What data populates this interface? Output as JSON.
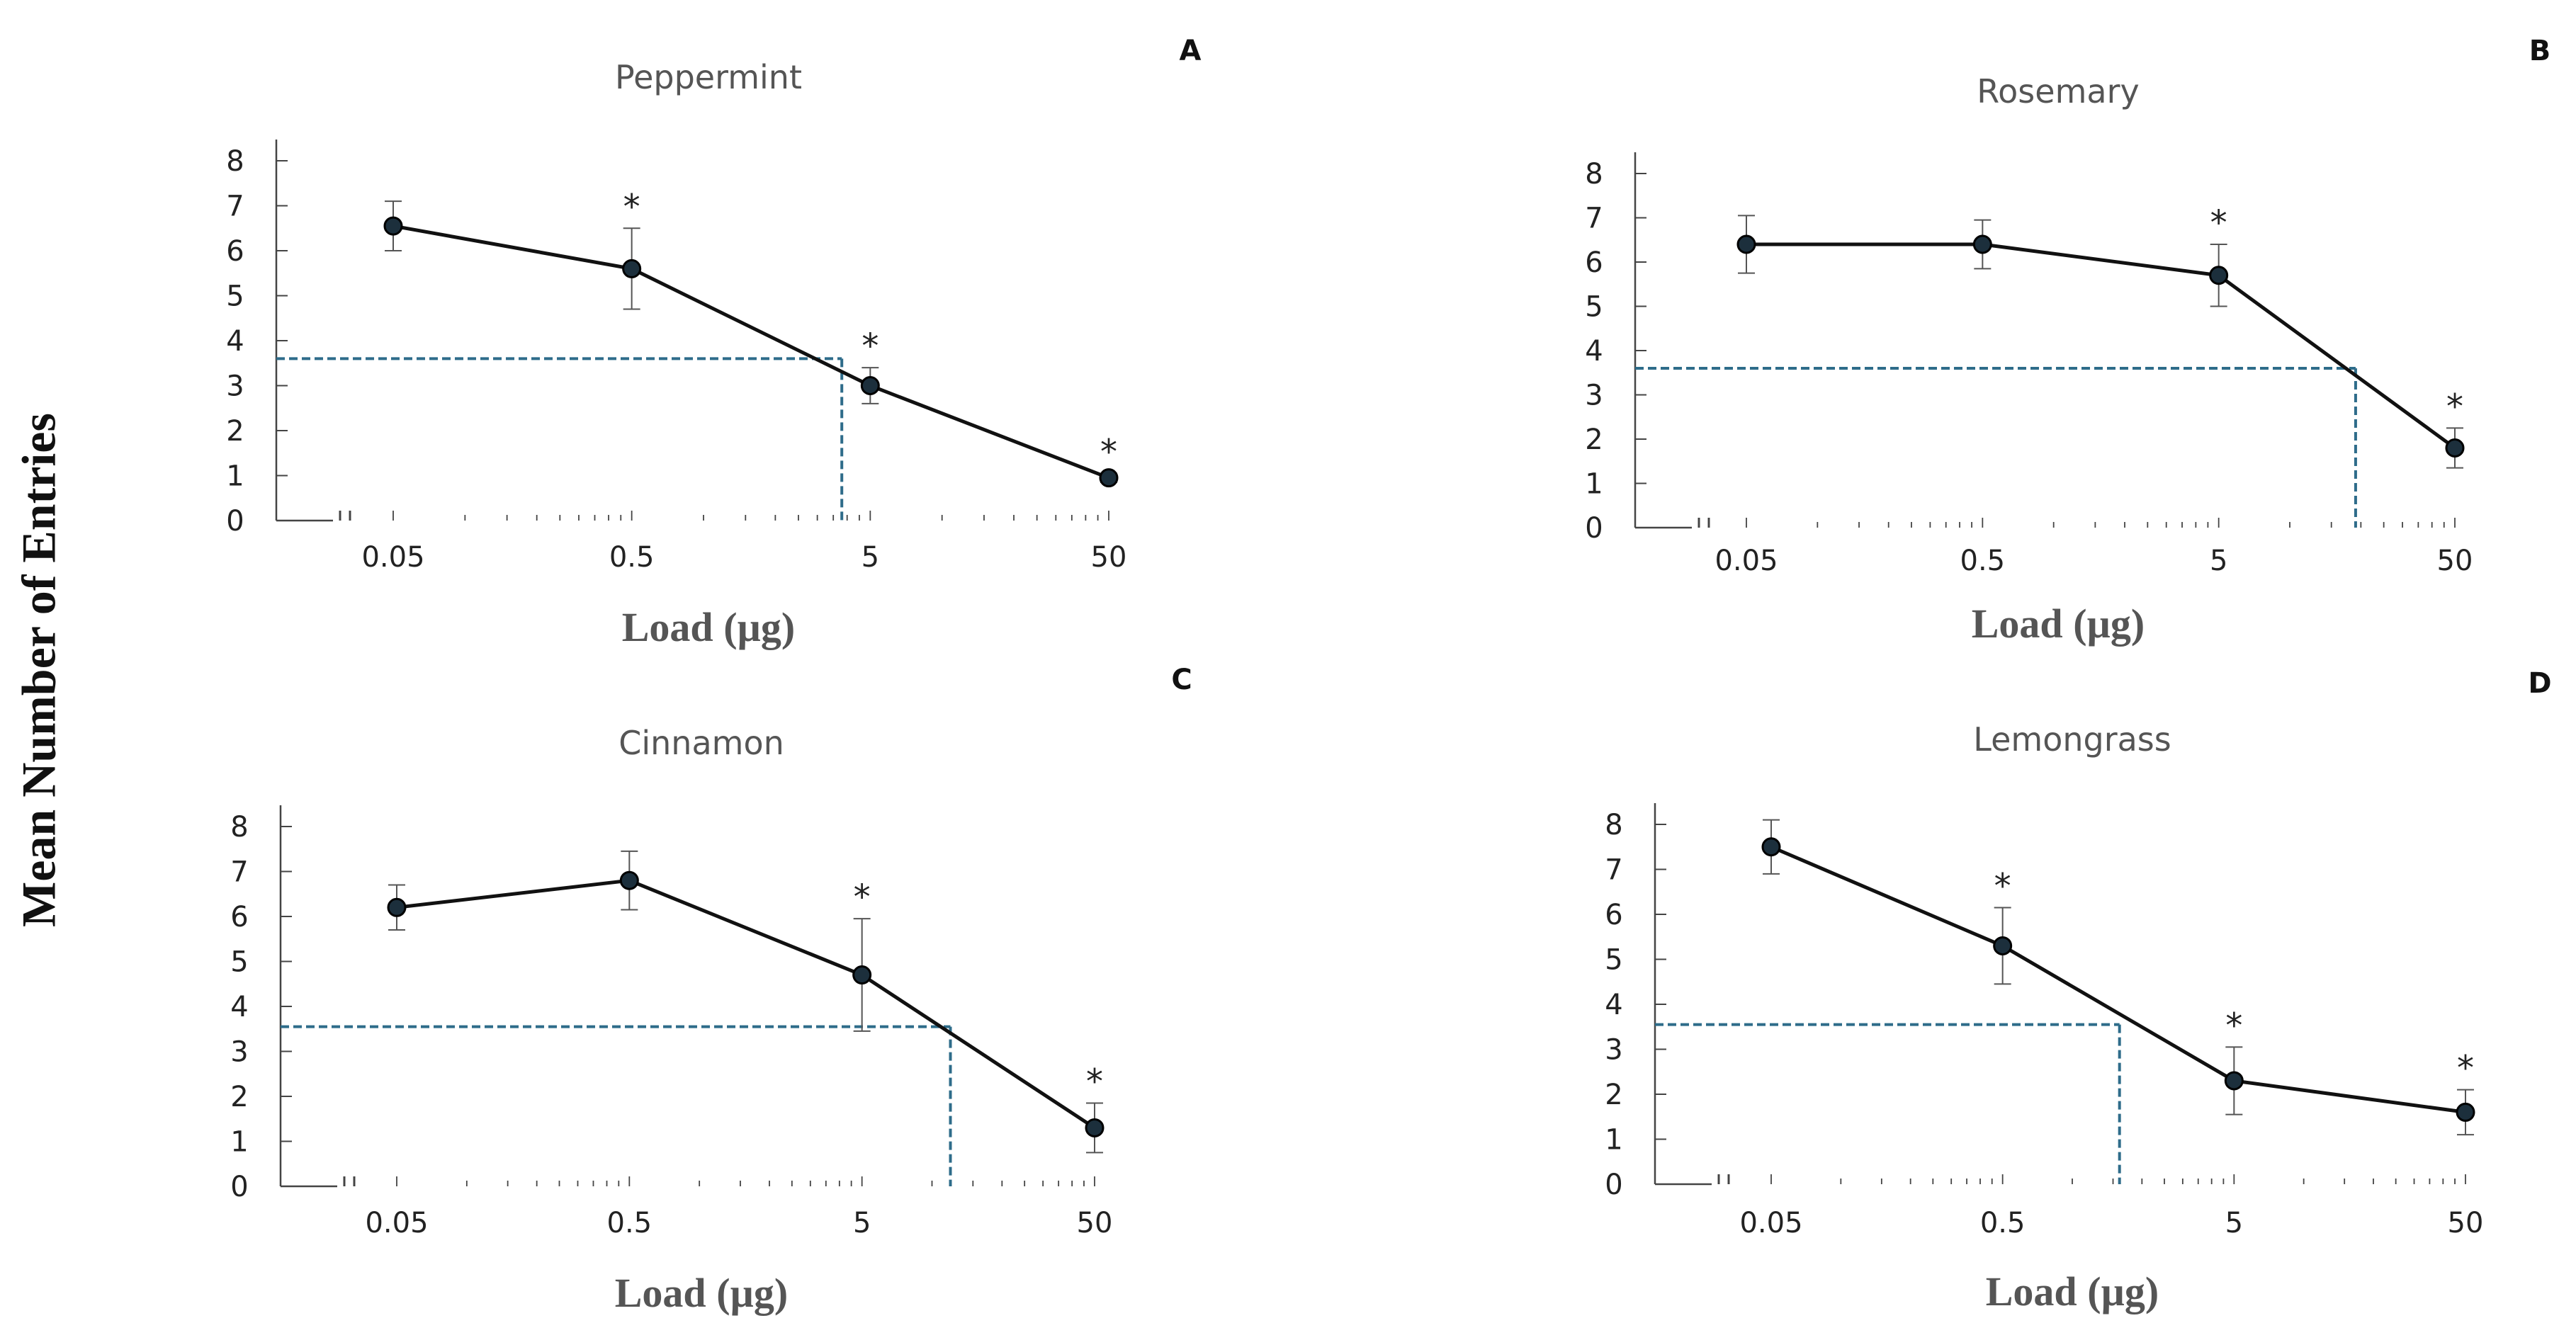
{
  "figure": {
    "ylabel": "Mean Number of Entries"
  },
  "chart_data": [
    {
      "type": "line",
      "panel": "A",
      "title": "Peppermint",
      "xlabel": "Load (µg)",
      "ylabel": "Mean Number of Entries",
      "x_scale": "log",
      "x": [
        0.05,
        0.5,
        5,
        50
      ],
      "x_tick_labels": [
        "0.05",
        "0.5",
        "5",
        "50"
      ],
      "y_ticks": [
        "0",
        "1",
        "2",
        "3",
        "4",
        "5",
        "6",
        "7",
        "8"
      ],
      "ylim": [
        0,
        8
      ],
      "values": [
        6.55,
        5.6,
        3.0,
        0.95
      ],
      "errors": [
        0.55,
        0.9,
        0.4,
        0.1
      ],
      "significant": [
        false,
        true,
        true,
        true
      ],
      "sig_marker": "*",
      "reference_y": 3.6,
      "reference_x": 3.8
    },
    {
      "type": "line",
      "panel": "B",
      "title": "Rosemary",
      "xlabel": "Load (µg)",
      "ylabel": "Mean Number of Entries",
      "x_scale": "log",
      "x": [
        0.05,
        0.5,
        5,
        50
      ],
      "x_tick_labels": [
        "0.05",
        "0.5",
        "5",
        "50"
      ],
      "y_ticks": [
        "0",
        "1",
        "2",
        "3",
        "4",
        "5",
        "6",
        "7",
        "8"
      ],
      "ylim": [
        0,
        8
      ],
      "values": [
        6.4,
        6.4,
        5.7,
        1.8
      ],
      "errors": [
        0.65,
        0.55,
        0.7,
        0.45
      ],
      "significant": [
        false,
        false,
        true,
        true
      ],
      "sig_marker": "*",
      "reference_y": 3.6,
      "reference_x": 19
    },
    {
      "type": "line",
      "panel": "C",
      "title": "Cinnamon",
      "xlabel": "Load (µg)",
      "ylabel": "Mean Number of Entries",
      "x_scale": "log",
      "x": [
        0.05,
        0.5,
        5,
        50
      ],
      "x_tick_labels": [
        "0.05",
        "0.5",
        "5",
        "50"
      ],
      "y_ticks": [
        "0",
        "1",
        "2",
        "3",
        "4",
        "5",
        "6",
        "7",
        "8"
      ],
      "ylim": [
        0,
        8
      ],
      "values": [
        6.2,
        6.8,
        4.7,
        1.3
      ],
      "errors": [
        0.5,
        0.65,
        1.25,
        0.55
      ],
      "significant": [
        false,
        false,
        true,
        true
      ],
      "sig_marker": "*",
      "reference_y": 3.55,
      "reference_x": 12
    },
    {
      "type": "line",
      "panel": "D",
      "title": "Lemongrass",
      "xlabel": "Load (µg)",
      "ylabel": "Mean Number of Entries",
      "x_scale": "log",
      "x": [
        0.05,
        0.5,
        5,
        50
      ],
      "x_tick_labels": [
        "0.05",
        "0.5",
        "5",
        "50"
      ],
      "y_ticks": [
        "0",
        "1",
        "2",
        "3",
        "4",
        "5",
        "6",
        "7",
        "8"
      ],
      "ylim": [
        0,
        8
      ],
      "values": [
        7.5,
        5.3,
        2.3,
        1.6
      ],
      "errors": [
        0.6,
        0.85,
        0.75,
        0.5
      ],
      "significant": [
        false,
        true,
        true,
        true
      ],
      "sig_marker": "*",
      "reference_y": 3.55,
      "reference_x": 1.6
    }
  ],
  "colors": {
    "line": "#111111",
    "marker_fill": "#1c2f3c",
    "reference": "#2e6c8a",
    "axis": "#444444",
    "error_bar": "#555555"
  },
  "icons": {
    "axis_break": "axis-break-icon"
  }
}
